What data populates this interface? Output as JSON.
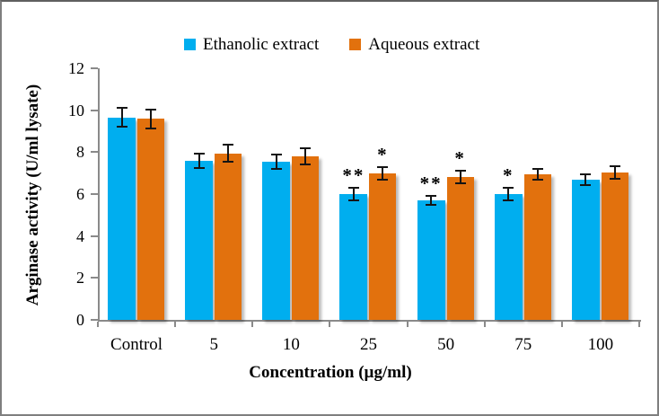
{
  "chart_data": {
    "type": "bar",
    "title": "",
    "categories": [
      "Control",
      "5",
      "10",
      "25",
      "50",
      "75",
      "100"
    ],
    "series": [
      {
        "name": "Ethanolic extract",
        "color": "#00AEEF",
        "values": [
          9.65,
          7.6,
          7.55,
          6.0,
          5.7,
          6.0,
          6.7
        ],
        "errors": [
          0.45,
          0.35,
          0.35,
          0.3,
          0.2,
          0.3,
          0.25
        ],
        "significance": [
          "",
          "",
          "",
          "**",
          "**",
          "*",
          ""
        ]
      },
      {
        "name": "Aqueous extract",
        "color": "#E2710D",
        "values": [
          9.6,
          7.95,
          7.8,
          7.0,
          6.8,
          6.95,
          7.05
        ],
        "errors": [
          0.45,
          0.4,
          0.4,
          0.3,
          0.3,
          0.25,
          0.3
        ],
        "significance": [
          "",
          "",
          "",
          "*",
          "*",
          "",
          ""
        ]
      }
    ],
    "xlabel": "Concentration (µg/ml)",
    "ylabel": "Arginase activity (U/ml lysate)",
    "ylim": [
      0,
      12
    ],
    "yticks": [
      0,
      2,
      4,
      6,
      8,
      10,
      12
    ],
    "grid": false,
    "legend_position": "top-center",
    "error_bar_color": "#141414",
    "axis_color": "#8a8a8a",
    "frame_border_color": "#7f7f7f"
  }
}
